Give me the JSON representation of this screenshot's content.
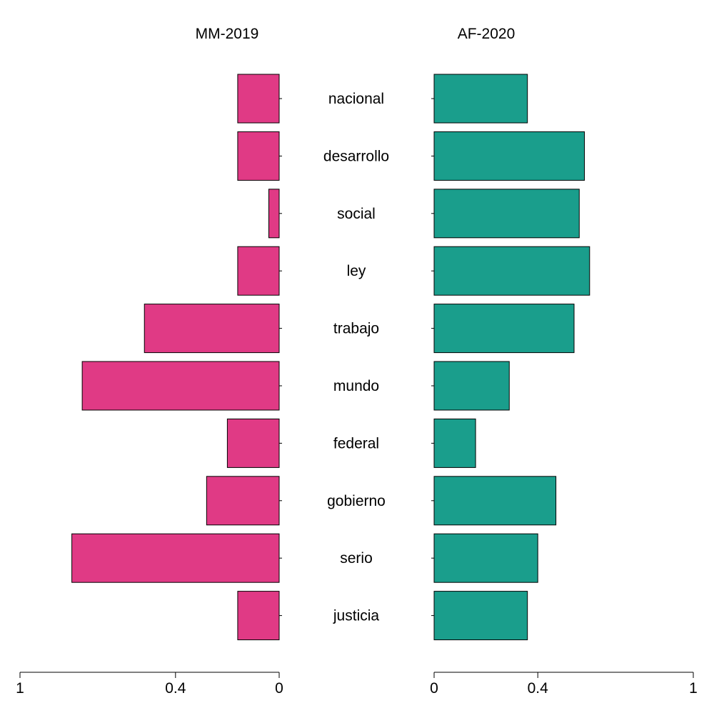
{
  "chart_data": {
    "type": "bar",
    "orientation": "horizontal",
    "layout": "back-to-back",
    "categories": [
      "nacional",
      "desarrollo",
      "social",
      "ley",
      "trabajo",
      "mundo",
      "federal",
      "gobierno",
      "serio",
      "justicia"
    ],
    "series": [
      {
        "name": "MM-2019",
        "color": "#E03A85",
        "values": [
          0.16,
          0.16,
          0.04,
          0.16,
          0.52,
          0.76,
          0.2,
          0.28,
          0.8,
          0.16
        ]
      },
      {
        "name": "AF-2020",
        "color": "#1A9E8C",
        "values": [
          0.36,
          0.58,
          0.56,
          0.6,
          0.54,
          0.29,
          0.16,
          0.47,
          0.4,
          0.36
        ]
      }
    ],
    "xlim": [
      0,
      1
    ],
    "left_axis_ticks": [
      "1",
      "0.4",
      "0"
    ],
    "right_axis_ticks": [
      "0",
      "0.4",
      "1"
    ],
    "grid": false,
    "legend": "none"
  }
}
